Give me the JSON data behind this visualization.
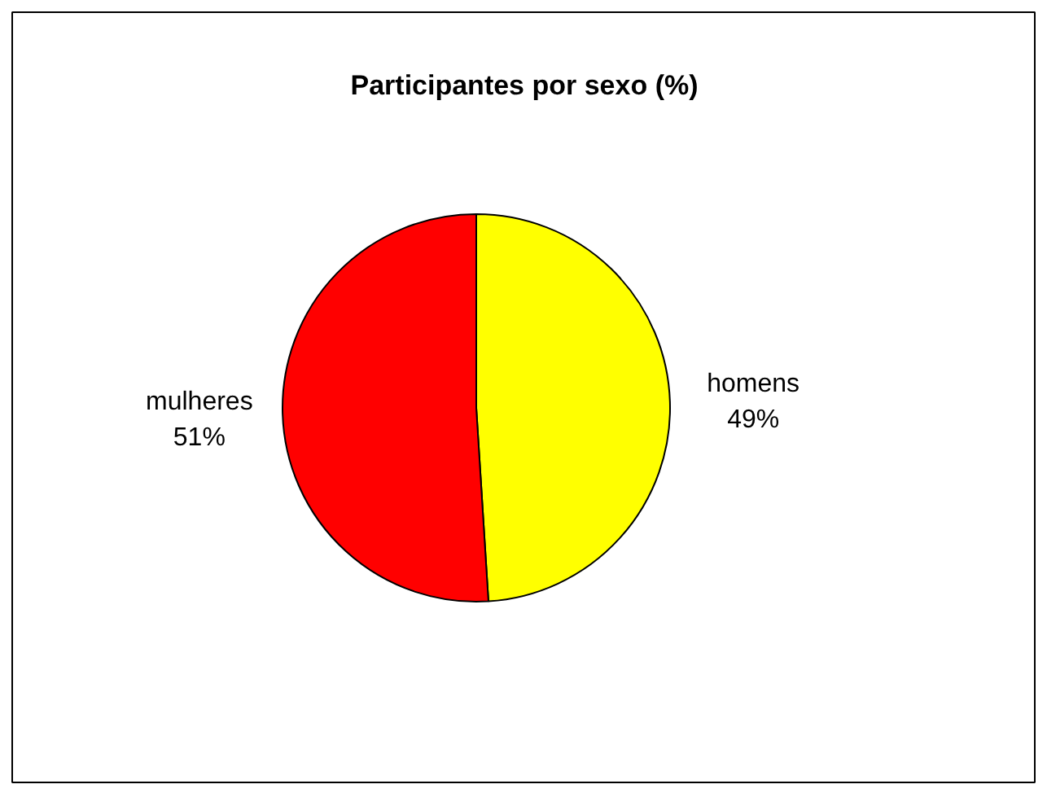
{
  "chart_data": {
    "type": "pie",
    "title": "Participantes por sexo (%)",
    "categories": [
      "homens",
      "mulheres"
    ],
    "values": [
      49,
      51
    ],
    "value_labels": [
      "49%",
      "51%"
    ],
    "colors": [
      "#ffff00",
      "#ff0000"
    ]
  }
}
